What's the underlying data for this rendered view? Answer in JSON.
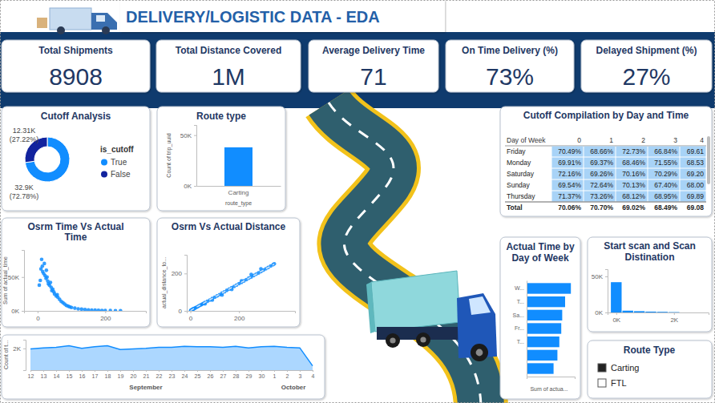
{
  "header": {
    "title": "DELIVERY/LOGISTIC DATA - EDA"
  },
  "kpis": [
    {
      "label": "Total Shipments",
      "value": "8908"
    },
    {
      "label": "Total Distance Covered",
      "value": "1M"
    },
    {
      "label": "Average Delivery Time",
      "value": "71"
    },
    {
      "label": "On Time Delivery (%)",
      "value": "73%"
    },
    {
      "label": "Delayed Shipment (%)",
      "value": "27%"
    }
  ],
  "chart_data": [
    {
      "type": "donut",
      "title": "Cutoff Analysis",
      "legend_title": "is_cutoff",
      "categories": [
        "True",
        "False"
      ],
      "values": [
        32900,
        12310
      ],
      "value_labels": [
        "32.9K (72.78%)",
        "12.31K (27.22%)"
      ],
      "colors": [
        "#118DFF",
        "#12239E"
      ],
      "data_labels": true,
      "legend": "right"
    },
    {
      "type": "bar",
      "title": "Route type",
      "categories": [
        "Carting"
      ],
      "values": [
        38000
      ],
      "color": "#118DFF",
      "x_label": "route_type",
      "y_label": "Count of trip_uuid",
      "ylim": [
        0,
        60000
      ],
      "yticks": [
        {
          "value": 0,
          "label": "0K"
        },
        {
          "value": 50000,
          "label": "50K"
        }
      ]
    },
    {
      "type": "scatter",
      "title": "Osrm Time Vs Actual Time",
      "y_label": "Sum of actual_time",
      "xlim": [
        -40,
        320
      ],
      "xticks": [
        0,
        200
      ],
      "ylim": [
        0,
        90000
      ],
      "yticks": [
        {
          "value": 0,
          "label": "0K"
        },
        {
          "value": 50000,
          "label": "50K"
        }
      ],
      "series": [
        {
          "type": "scatter",
          "color": "#118DFF",
          "marker": "circle",
          "x": [
            12,
            10,
            15,
            18,
            20,
            22,
            25,
            8,
            28,
            30,
            32,
            35,
            38,
            40,
            42,
            45,
            48,
            50,
            55,
            58,
            60,
            65,
            70,
            75,
            80,
            85,
            90,
            95,
            100,
            110,
            120,
            130,
            140,
            150,
            160,
            170,
            180,
            190,
            200,
            215,
            230,
            245,
            5,
            14,
            26
          ],
          "values": [
            76000,
            62000,
            58000,
            55000,
            70000,
            52000,
            48000,
            45000,
            50000,
            44000,
            40000,
            38000,
            42000,
            35000,
            30000,
            32000,
            28000,
            25000,
            22000,
            24000,
            20000,
            17000,
            14000,
            12000,
            10000,
            8000,
            7000,
            6000,
            5000,
            4000,
            3000,
            2500,
            2000,
            1500,
            1200,
            1000,
            800,
            600,
            500,
            400,
            300,
            200,
            38000,
            66000,
            60000
          ]
        }
      ]
    },
    {
      "type": "scatter",
      "title": "Osrm Vs Actual Distance",
      "y_label": "actual_distance_to...",
      "xlim": [
        -15,
        430
      ],
      "xticks": [
        0,
        200
      ],
      "ylim": [
        0,
        300
      ],
      "yticks": [
        0,
        200
      ],
      "series": [
        {
          "type": "scatter",
          "color": "#118DFF",
          "marker": "circle",
          "x": [
            1,
            3,
            5,
            8,
            10,
            12,
            15,
            18,
            20,
            25,
            30,
            35,
            40,
            45,
            50,
            55,
            60,
            70,
            80,
            90,
            100,
            110,
            120,
            130,
            140,
            150,
            160,
            170,
            180,
            190,
            200,
            210,
            220,
            230,
            240,
            250,
            260,
            270,
            280,
            290,
            300,
            310,
            320,
            330,
            340,
            345,
            60,
            90,
            130,
            170,
            210,
            250,
            290
          ],
          "values": [
            2,
            3,
            5,
            7,
            9,
            10,
            12,
            14,
            16,
            19,
            22,
            27,
            30,
            33,
            37,
            41,
            45,
            51,
            58,
            66,
            73,
            80,
            87,
            95,
            102,
            110,
            117,
            124,
            131,
            138,
            146,
            152,
            160,
            167,
            175,
            181,
            189,
            196,
            203,
            210,
            218,
            225,
            232,
            240,
            247,
            252,
            38,
            58,
            85,
            115,
            160,
            195,
            225
          ]
        },
        {
          "type": "line",
          "color": "#cfe3f7",
          "line_style": "dashed",
          "x": [
            0,
            345
          ],
          "values": [
            2,
            250
          ]
        }
      ]
    },
    {
      "type": "area",
      "y_label": "Count of t...",
      "months": [
        {
          "label": "September",
          "days": [
            "12",
            "13",
            "14",
            "15",
            "16",
            "17",
            "18",
            "19",
            "20",
            "21",
            "22",
            "23",
            "24",
            "25",
            "26",
            "27",
            "28",
            "29",
            "30"
          ]
        },
        {
          "label": "October",
          "days": [
            "1",
            "2",
            "3",
            "4"
          ]
        }
      ],
      "values": [
        1950,
        2050,
        2100,
        2250,
        2000,
        2150,
        2250,
        1900,
        1950,
        2000,
        2100,
        2100,
        2200,
        2150,
        2150,
        2100,
        2200,
        2050,
        2150,
        2200,
        2100,
        2050,
        400
      ],
      "color": "#118DFF",
      "ylim": [
        0,
        2800
      ],
      "yticks": [
        {
          "value": 2000,
          "label": "2K"
        }
      ]
    },
    {
      "type": "bar",
      "orientation": "horizontal",
      "title": "Actual Time by Day of Week",
      "categories": [
        "W...",
        "T...",
        "Sa...",
        "Fr...",
        "T...",
        null,
        null
      ],
      "values": [
        4600000,
        4000000,
        3700000,
        3600000,
        3400000,
        3200000,
        2800000
      ],
      "color": "#118DFF",
      "x_label": "Sum of actua...",
      "xlim": [
        0,
        5000000
      ],
      "tick_labels": "y"
    },
    {
      "type": "histogram",
      "title": "Start scan and Scan Distination",
      "bins": [
        -200,
        200,
        600,
        1000,
        1400,
        1800,
        2200
      ],
      "values": [
        42000,
        2500,
        1800,
        1200,
        900,
        500
      ],
      "color": "#118DFF",
      "xlim": [
        -300,
        3200
      ],
      "xticks": [
        {
          "value": 0,
          "label": "0K"
        },
        {
          "value": 2000,
          "label": "2K"
        }
      ],
      "ylim": [
        0,
        60000
      ],
      "yticks": [
        {
          "value": 0,
          "label": "0K"
        },
        {
          "value": 50000,
          "label": "50K"
        }
      ]
    }
  ],
  "table": {
    "title": "Cutoff Compilation by Day and Time",
    "columns": [
      "Day of Week",
      "0",
      "1",
      "2",
      "3",
      "4"
    ],
    "rows": [
      [
        "Friday",
        "70.49%",
        "68.66%",
        "72.73%",
        "66.84%",
        "69.61"
      ],
      [
        "Monday",
        "69.91%",
        "69.37%",
        "68.46%",
        "71.55%",
        "68.53"
      ],
      [
        "Saturday",
        "72.16%",
        "69.26%",
        "70.16%",
        "70.29%",
        "69.20"
      ],
      [
        "Sunday",
        "69.54%",
        "72.64%",
        "70.13%",
        "67.40%",
        "68.00"
      ],
      [
        "Thursday",
        "71.37%",
        "73.26%",
        "68.12%",
        "68.95%",
        "69.89"
      ]
    ],
    "total_row": [
      "Total",
      "70.06%",
      "70.70%",
      "69.02%",
      "68.49%",
      "69.08"
    ]
  },
  "slicer": {
    "title": "Route Type",
    "items": [
      {
        "label": "Carting",
        "selected": true
      },
      {
        "label": "FTL",
        "selected": false
      }
    ]
  }
}
